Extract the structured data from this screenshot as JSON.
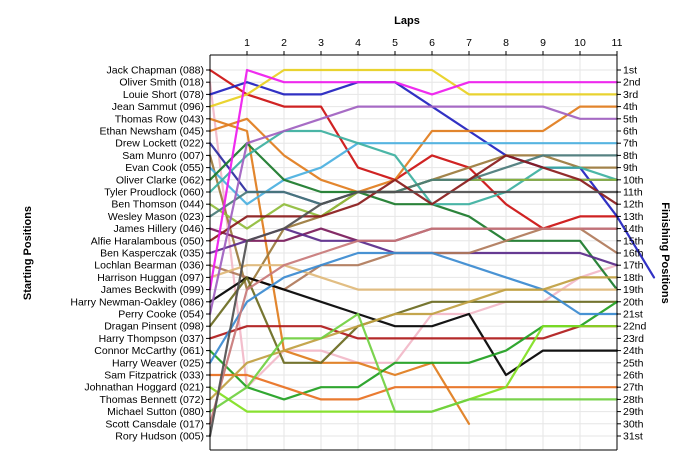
{
  "chart_data": {
    "type": "line",
    "xlabel": "Laps",
    "ylabel_left": "Starting Positions",
    "ylabel_right": "Finishing Positions",
    "x_ticks": [
      "1",
      "2",
      "3",
      "4",
      "5",
      "6",
      "7",
      "8",
      "9",
      "10",
      "11"
    ],
    "drivers": [
      "Jack Chapman (088)",
      "Oliver Smith (018)",
      "Louie Short (078)",
      "Jean Sammut (096)",
      "Thomas Row (043)",
      "Ethan Newsham (045)",
      "Drew Lockett (022)",
      "Sam Munro (007)",
      "Evan Cook (055)",
      "Oliver Clarke (062)",
      "Tyler Proudlock (060)",
      "Ben Thomson (044)",
      "Wesley Mason (023)",
      "James Hillery (046)",
      "Alfie Haralambous (050)",
      "Ben Kasperczak (035)",
      "Lochlan Bearman (036)",
      "Harrison Huggan (097)",
      "James Beckwith (099)",
      "Harry Newman-Oakley (086)",
      "Perry Cooke (054)",
      "Dragan Pinsent (098)",
      "Harry Thompson (037)",
      "Connor McCarthy (061)",
      "Harry Weaver (025)",
      "Sam Fitzpatrick (033)",
      "Johnathan Hoggard (021)",
      "Thomas Bennett (072)",
      "Michael Sutton (080)",
      "Scott Cansdale (017)",
      "Rory Hudson (005)"
    ],
    "finishing_labels": [
      "1st",
      "2nd",
      "3rd",
      "4th",
      "5th",
      "6th",
      "7th",
      "8th",
      "9th",
      "10th",
      "11th",
      "12th",
      "13th",
      "14th",
      "15th",
      "16th",
      "17th",
      "18th",
      "19th",
      "20th",
      "21st",
      "22nd",
      "23rd",
      "24th",
      "25th",
      "26th",
      "27th",
      "28th",
      "29th",
      "30th",
      "31st"
    ],
    "series": [
      {
        "color": "#cc1010",
        "values": [
          1,
          3,
          4,
          4,
          9,
          10,
          8,
          9,
          12,
          14,
          13,
          13
        ]
      },
      {
        "color": "#f2b8c8",
        "values": [
          2,
          27,
          24,
          24,
          25,
          25,
          21,
          21,
          20,
          20,
          18,
          17
        ]
      },
      {
        "color": "#1f1fbf",
        "values": [
          3,
          2,
          3,
          3,
          2,
          2,
          4,
          6,
          8,
          9,
          9,
          13,
          18
        ]
      },
      {
        "color": "#e8d020",
        "values": [
          4,
          3,
          1,
          1,
          1,
          1,
          1,
          3,
          3,
          3,
          3,
          3
        ]
      },
      {
        "color": "#e07c1c",
        "values": [
          5,
          6,
          24,
          25,
          25,
          26,
          25,
          30
        ]
      },
      {
        "color": "#e17c1c",
        "values": [
          6,
          5,
          8,
          10,
          11,
          10,
          6,
          6,
          6,
          6,
          4,
          4
        ]
      },
      {
        "color": "#2a2a9e",
        "values": [
          7,
          11,
          11,
          12,
          11,
          11,
          10,
          10,
          10,
          10,
          10,
          10
        ]
      },
      {
        "color": "#9b7a3c",
        "values": [
          8,
          19,
          14,
          13,
          11,
          11,
          10,
          9,
          8,
          8,
          9,
          9
        ]
      },
      {
        "color": "#4ab0e0",
        "values": [
          9,
          12,
          10,
          9,
          7,
          7,
          7,
          7,
          7,
          7,
          7,
          7
        ]
      },
      {
        "color": "#1a7a2a",
        "values": [
          10,
          7,
          10,
          11,
          11,
          12,
          12,
          13,
          15,
          15,
          15,
          19
        ]
      },
      {
        "color": "#3cb0a0",
        "values": [
          11,
          8,
          6,
          6,
          7,
          8,
          12,
          12,
          11,
          9,
          9,
          10
        ]
      },
      {
        "color": "#8fbc3a",
        "values": [
          12,
          14,
          12,
          13,
          11,
          11,
          10,
          10,
          10,
          10,
          10,
          10
        ]
      },
      {
        "color": "#4a7a7a",
        "values": [
          13,
          11,
          11,
          12,
          11,
          11,
          10,
          10,
          9,
          8,
          8,
          8
        ]
      },
      {
        "color": "#7a1a5a",
        "values": [
          14,
          15,
          15,
          14,
          15,
          15,
          14,
          14,
          14,
          14,
          14,
          14
        ]
      },
      {
        "color": "#8a1a1a",
        "values": [
          15,
          13,
          13,
          13,
          12,
          10,
          12,
          10,
          8,
          9,
          10,
          12
        ]
      },
      {
        "color": "#5a2a8a",
        "values": [
          16,
          15,
          14,
          15,
          15,
          16,
          16,
          16,
          16,
          16,
          16,
          17
        ]
      },
      {
        "color": "#b07a5a",
        "values": [
          17,
          18,
          19,
          17,
          17,
          16,
          16,
          16,
          15,
          14,
          14,
          16
        ]
      },
      {
        "color": "#e0b878",
        "values": [
          18,
          17,
          17,
          18,
          19,
          19,
          19,
          19,
          19,
          19,
          19,
          19
        ]
      },
      {
        "color": "#ee1aee",
        "values": [
          19,
          1,
          2,
          2,
          2,
          2,
          3,
          2,
          2,
          2,
          2,
          2
        ]
      },
      {
        "color": "#000000",
        "values": [
          20,
          18,
          19,
          20,
          21,
          22,
          22,
          21,
          26,
          24,
          24,
          24
        ]
      },
      {
        "color": "#a060c0",
        "values": [
          21,
          7,
          6,
          5,
          4,
          4,
          4,
          4,
          4,
          4,
          5,
          5
        ]
      },
      {
        "color": "#6a6a20",
        "values": [
          22,
          18,
          25,
          25,
          22,
          21,
          20,
          20,
          20,
          20,
          20,
          20
        ]
      },
      {
        "color": "#b01a1a",
        "values": [
          23,
          22,
          22,
          22,
          23,
          23,
          23,
          23,
          23,
          23,
          22,
          22
        ]
      },
      {
        "color": "#20a020",
        "values": [
          24,
          27,
          28,
          27,
          27,
          25,
          25,
          25,
          24,
          22,
          22,
          20
        ]
      },
      {
        "color": "#3a8ad0",
        "values": [
          25,
          20,
          18,
          17,
          16,
          16,
          16,
          17,
          18,
          19,
          21,
          21
        ]
      },
      {
        "color": "#e87020",
        "values": [
          26,
          26,
          27,
          28,
          28,
          27,
          27,
          27,
          27,
          27,
          27,
          27
        ]
      },
      {
        "color": "#80e020",
        "values": [
          27,
          29,
          29,
          29,
          29,
          29,
          29,
          28,
          27,
          22,
          22,
          22
        ]
      },
      {
        "color": "#c0a040",
        "values": [
          28,
          25,
          24,
          23,
          22,
          21,
          21,
          20,
          19,
          19,
          18,
          18
        ]
      },
      {
        "color": "#70d040",
        "values": [
          29,
          27,
          23,
          23,
          21,
          29,
          29,
          28,
          28,
          28,
          28,
          28
        ]
      },
      {
        "color": "#c87878",
        "values": [
          30,
          19,
          17,
          16,
          15,
          15,
          14,
          14,
          14,
          14,
          14,
          14
        ]
      },
      {
        "color": "#505050",
        "values": [
          31,
          15,
          14,
          12,
          11,
          11,
          11,
          11,
          11,
          11,
          11,
          11
        ]
      }
    ]
  }
}
